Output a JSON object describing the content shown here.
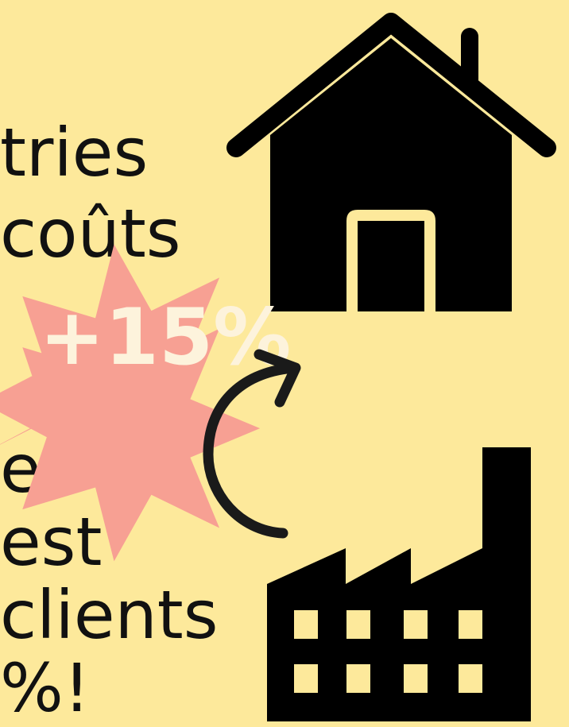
{
  "text_lines": {
    "line1": "tries",
    "line2": "coûts",
    "line3": "e",
    "line4": "est",
    "line5": "clients",
    "line6": "%!"
  },
  "badge": {
    "label": "+15%"
  },
  "colors": {
    "background": "#fde99b",
    "badge_fill": "#f7a093",
    "badge_text": "#fdf3dc",
    "ink": "#111111"
  },
  "icons": [
    "house-icon",
    "factory-icon",
    "curved-arrow-icon",
    "starburst-badge"
  ]
}
